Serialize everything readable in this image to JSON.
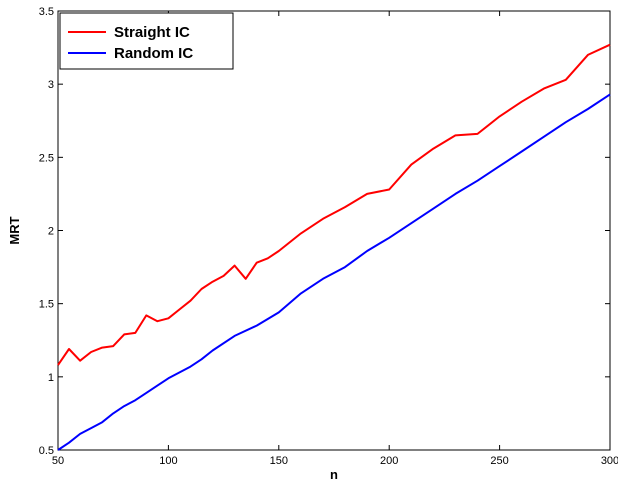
{
  "chart_data": {
    "type": "line",
    "title": "",
    "xlabel": "n",
    "ylabel": "MRT",
    "xlim": [
      50,
      300
    ],
    "ylim": [
      0.5,
      3.5
    ],
    "xticks": [
      50,
      100,
      150,
      200,
      250,
      300
    ],
    "yticks": [
      0.5,
      1,
      1.5,
      2,
      2.5,
      3,
      3.5
    ],
    "xtick_labels": [
      "50",
      "100",
      "150",
      "200",
      "250",
      "300"
    ],
    "ytick_labels": [
      "0.5",
      "1",
      "1.5",
      "2",
      "2.5",
      "3",
      "3.5"
    ],
    "grid": false,
    "legend_position": "top-left",
    "series": [
      {
        "name": "Straight IC",
        "color": "#ff0000",
        "x": [
          50,
          55,
          60,
          65,
          70,
          75,
          80,
          85,
          90,
          95,
          100,
          105,
          110,
          115,
          120,
          125,
          130,
          135,
          140,
          145,
          150,
          160,
          170,
          180,
          190,
          200,
          210,
          220,
          230,
          240,
          250,
          260,
          270,
          280,
          290,
          300
        ],
        "y": [
          1.08,
          1.19,
          1.11,
          1.17,
          1.2,
          1.21,
          1.29,
          1.3,
          1.42,
          1.38,
          1.4,
          1.46,
          1.52,
          1.6,
          1.65,
          1.69,
          1.76,
          1.67,
          1.78,
          1.81,
          1.86,
          1.98,
          2.08,
          2.16,
          2.25,
          2.28,
          2.45,
          2.56,
          2.65,
          2.66,
          2.78,
          2.88,
          2.97,
          3.03,
          3.2,
          3.27
        ]
      },
      {
        "name": "Random IC",
        "color": "#0000ff",
        "x": [
          50,
          55,
          60,
          65,
          70,
          75,
          80,
          85,
          90,
          95,
          100,
          110,
          115,
          120,
          130,
          140,
          150,
          160,
          170,
          180,
          190,
          200,
          210,
          220,
          230,
          240,
          250,
          260,
          270,
          280,
          290,
          300
        ],
        "y": [
          0.5,
          0.55,
          0.61,
          0.65,
          0.69,
          0.75,
          0.8,
          0.84,
          0.89,
          0.94,
          0.99,
          1.07,
          1.12,
          1.18,
          1.28,
          1.35,
          1.44,
          1.57,
          1.67,
          1.75,
          1.86,
          1.95,
          2.05,
          2.15,
          2.25,
          2.34,
          2.44,
          2.54,
          2.64,
          2.74,
          2.83,
          2.93
        ]
      }
    ]
  }
}
